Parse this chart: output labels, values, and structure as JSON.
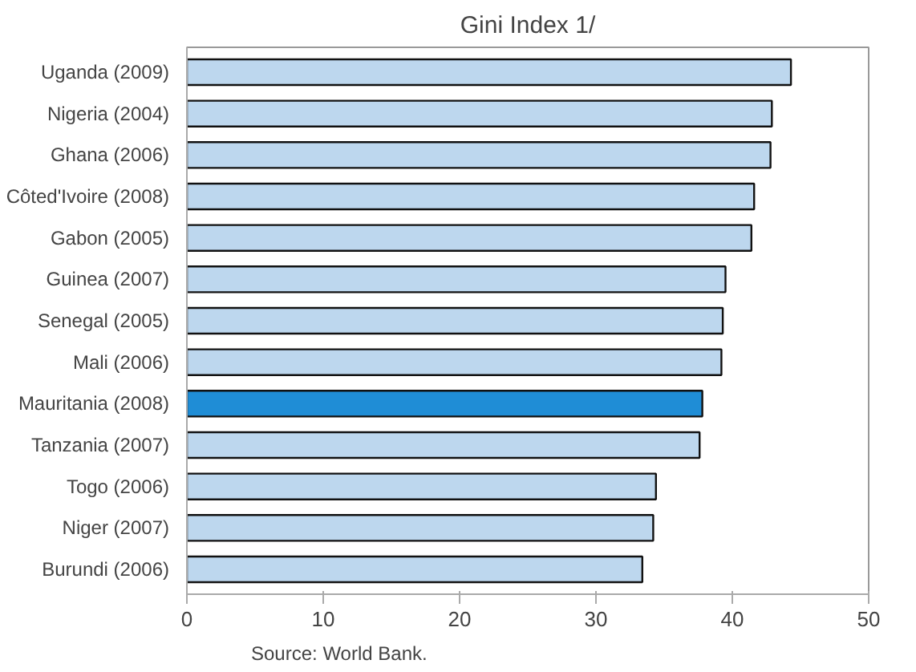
{
  "chart_data": {
    "type": "bar",
    "orientation": "horizontal",
    "title": "Gini Index 1/",
    "categories": [
      "Uganda (2009)",
      "Nigeria (2004)",
      "Ghana (2006)",
      "Côted'Ivoire (2008)",
      "Gabon (2005)",
      "Guinea (2007)",
      "Senegal (2005)",
      "Mali (2006)",
      "Mauritania (2008)",
      "Tanzania (2007)",
      "Togo (2006)",
      "Niger (2007)",
      "Burundi (2006)"
    ],
    "values": [
      44.3,
      42.9,
      42.8,
      41.6,
      41.4,
      39.5,
      39.3,
      39.2,
      37.8,
      37.6,
      34.4,
      34.2,
      33.4
    ],
    "colors": [
      "#bdd7ee",
      "#bdd7ee",
      "#bdd7ee",
      "#bdd7ee",
      "#bdd7ee",
      "#bdd7ee",
      "#bdd7ee",
      "#bdd7ee",
      "#1f8dd6",
      "#bdd7ee",
      "#bdd7ee",
      "#bdd7ee",
      "#bdd7ee"
    ],
    "xlim": [
      0,
      50
    ],
    "xticks": [
      0,
      10,
      20,
      30,
      40,
      50
    ],
    "grid": false,
    "annotations": [
      "Source:  World Bank."
    ]
  }
}
